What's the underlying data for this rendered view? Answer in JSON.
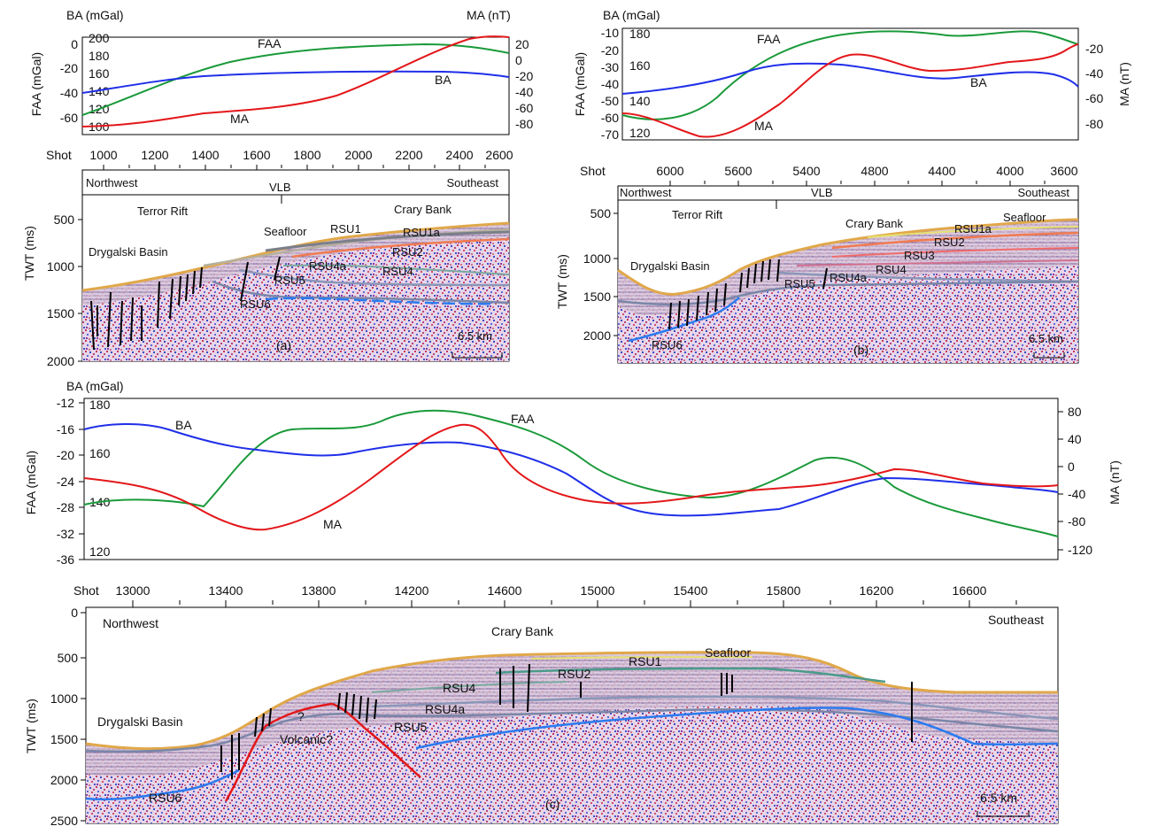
{
  "colors": {
    "FAA": "#1a9a3a",
    "BA": "#1f2fe8",
    "MA": "#e3171a",
    "seafloor": "#e0a84a",
    "rsu": "#7a86a8",
    "rsu6": "#2b7bf0",
    "volcanic": "#e3171a",
    "fault": "#000000"
  },
  "panel_a": {
    "chart": {
      "left_axis_top": "BA (mGal)",
      "left_axis_side": "FAA (mGal)",
      "right_axis_top": "MA (nT)",
      "faa_ticks": [
        "0",
        "-20",
        "-40",
        "-60"
      ],
      "ba_ticks": [
        "200",
        "180",
        "160",
        "140",
        "120",
        "100"
      ],
      "ma_ticks": [
        "20",
        "0",
        "-20",
        "-40",
        "-60",
        "-80"
      ],
      "curve_labels": {
        "faa": "FAA",
        "ba": "BA",
        "ma": "MA"
      }
    },
    "shot_label": "Shot",
    "shots": [
      "1000",
      "1200",
      "1400",
      "1600",
      "1800",
      "2000",
      "2200",
      "2400",
      "2600"
    ],
    "section": {
      "direction_left": "Northwest",
      "direction_right": "Southeast",
      "vlb": "VLB",
      "twt_label": "TWT (ms)",
      "twt_ticks": [
        "500",
        "1000",
        "1500",
        "2000"
      ],
      "labels": {
        "terror_rift": "Terror Rift",
        "crary_bank": "Crary Bank",
        "seafloor": "Seafloor",
        "rsu1": "RSU1",
        "rsu1a": "RSU1a",
        "rsu2": "RSU2",
        "rsu4": "RSU4",
        "rsu4a": "RSU4a",
        "rsu5": "RSU5",
        "rsu6": "RSU6",
        "drygalski": "Drygalski Basin"
      },
      "panel_letter": "(a)",
      "scale": "6.5 km"
    }
  },
  "panel_b": {
    "chart": {
      "left_axis_top": "BA (mGal)",
      "left_axis_side": "FAA (mGal)",
      "right_axis_side": "MA (nT)",
      "faa_ticks": [
        "-10",
        "-20",
        "-30",
        "-40",
        "-50",
        "-60",
        "-70"
      ],
      "ba_ticks": [
        "180",
        "160",
        "140",
        "120"
      ],
      "ma_ticks": [
        "-20",
        "-40",
        "-60",
        "-80"
      ],
      "curve_labels": {
        "faa": "FAA",
        "ba": "BA",
        "ma": "MA"
      }
    },
    "shot_label": "Shot",
    "shots": [
      "6000",
      "5600",
      "5400",
      "4800",
      "4400",
      "4000",
      "3600"
    ],
    "section": {
      "direction_left": "Northwest",
      "direction_right": "Southeast",
      "vlb": "VLB",
      "twt_label": "TWT (ms)",
      "twt_ticks": [
        "500",
        "1000",
        "1500",
        "2000"
      ],
      "labels": {
        "terror_rift": "Terror Rift",
        "crary_bank": "Crary Bank",
        "seafloor": "Seafloor",
        "rsu1a": "RSU1a",
        "rsu2": "RSU2",
        "rsu3": "RSU3",
        "rsu4": "RSU4",
        "rsu4a": "RSU4a",
        "rsu5": "RSU5",
        "rsu6": "RSU6",
        "drygalski": "Drygalski Basin"
      },
      "panel_letter": "(b)",
      "scale": "6.5 km"
    }
  },
  "panel_c": {
    "chart": {
      "left_axis_top": "BA (mGal)",
      "left_axis_side": "FAA (mGal)",
      "right_axis_side": "MA (nT)",
      "faa_ticks": [
        "-12",
        "-16",
        "-20",
        "-24",
        "-28",
        "-32",
        "-36"
      ],
      "ba_ticks": [
        "180",
        "160",
        "140",
        "120"
      ],
      "ma_ticks": [
        "80",
        "40",
        "0",
        "-40",
        "-80",
        "-120"
      ],
      "curve_labels": {
        "faa": "FAA",
        "ba": "BA",
        "ma": "MA"
      }
    },
    "shot_label": "Shot",
    "shots": [
      "13000",
      "13400",
      "13800",
      "14200",
      "14600",
      "15000",
      "15400",
      "15800",
      "16200",
      "16600"
    ],
    "section": {
      "direction_left": "Northwest",
      "direction_right": "Southeast",
      "twt_label": "TWT (ms)",
      "twt_ticks": [
        "0",
        "500",
        "1000",
        "1500",
        "2000",
        "2500"
      ],
      "labels": {
        "crary_bank": "Crary Bank",
        "seafloor": "Seafloor",
        "rsu1": "RSU1",
        "rsu2": "RSU2",
        "rsu4": "RSU4",
        "rsu4a": "RSU4a",
        "rsu5": "RSU5",
        "rsu6": "RSU6",
        "drygalski": "Drygalski Basin",
        "question": "?",
        "volcanic": "Volcanic?"
      },
      "panel_letter": "(c)",
      "scale": "6.5 km"
    }
  }
}
